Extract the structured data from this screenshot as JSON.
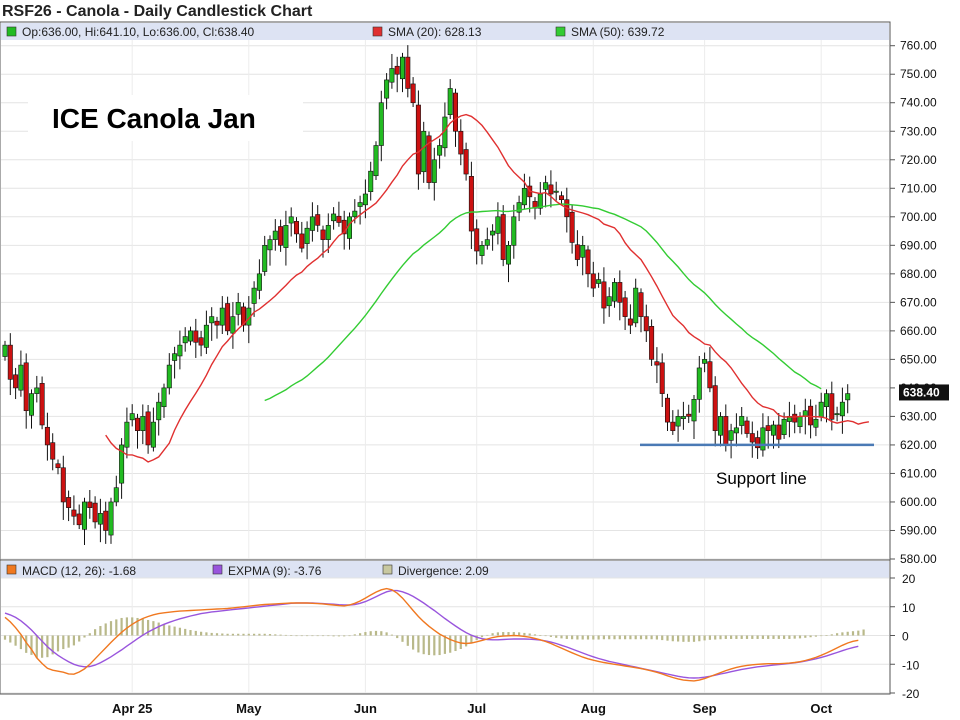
{
  "chart_data": {
    "type": "candlestick",
    "title": "RSF26 - Canola - Daily Candlestick Chart",
    "legend": {
      "ohlc": "Op:636.00, Hi:641.10, Lo:636.00, Cl:638.40",
      "sma20": "SMA (20): 628.13",
      "sma50": "SMA (50): 639.72",
      "macd": "MACD (12, 26): -1.68",
      "expma": "EXPMA (9): -3.76",
      "divergence": "Divergence: 2.09"
    },
    "colors": {
      "up": "#22bb22",
      "down": "#cc1111",
      "sma20": "#e03030",
      "sma50": "#33cc33",
      "macd": "#f07820",
      "expma": "#9955dd",
      "divergence": "#b9b98a",
      "support": "#4a7ab5",
      "legend_bg": "#dde3f3"
    },
    "annotations": {
      "headline": "ICE Canola Jan",
      "support_label": "Support line"
    },
    "support_level": 620,
    "last_price_label": "638.40",
    "y_range": [
      580,
      762
    ],
    "y_ticks": [
      "760.00",
      "750.00",
      "740.00",
      "730.00",
      "720.00",
      "710.00",
      "700.00",
      "690.00",
      "680.00",
      "670.00",
      "660.00",
      "650.00",
      "640.00",
      "630.00",
      "620.00",
      "610.00",
      "600.00",
      "590.00",
      "580.00"
    ],
    "macd_range": [
      -20,
      20
    ],
    "macd_ticks": [
      "20",
      "10",
      "0",
      "-10",
      "-20"
    ],
    "x_labels": [
      {
        "label": "Apr 25",
        "index": 24
      },
      {
        "label": "May",
        "index": 46
      },
      {
        "label": "Jun",
        "index": 68
      },
      {
        "label": "Jul",
        "index": 89
      },
      {
        "label": "Aug",
        "index": 111
      },
      {
        "label": "Sep",
        "index": 132
      },
      {
        "label": "Oct",
        "index": 154
      }
    ],
    "close": [
      655,
      643,
      640,
      648,
      632,
      638,
      640,
      627,
      620,
      615,
      612,
      600,
      598,
      595,
      592,
      600,
      598,
      593,
      596,
      590,
      600,
      605,
      620,
      628,
      631,
      625,
      630,
      620,
      628,
      635,
      640,
      648,
      652,
      655,
      658,
      660,
      656,
      655,
      662,
      665,
      662,
      668,
      660,
      665,
      670,
      662,
      668,
      675,
      680,
      690,
      692,
      695,
      690,
      697,
      700,
      694,
      689,
      696,
      700,
      697,
      692,
      697,
      701,
      698,
      694,
      700,
      702,
      705,
      708,
      716,
      725,
      740,
      748,
      752,
      750,
      756,
      745,
      740,
      715,
      730,
      712,
      720,
      725,
      735,
      745,
      730,
      722,
      715,
      695,
      688,
      690,
      692,
      695,
      700,
      685,
      690,
      700,
      705,
      710,
      707,
      703,
      708,
      712,
      708,
      709,
      706,
      700,
      691,
      685,
      690,
      680,
      675,
      678,
      668,
      672,
      677,
      670,
      665,
      662,
      675,
      665,
      660,
      650,
      648,
      638,
      628,
      625,
      630,
      630,
      630,
      636,
      647,
      650,
      640,
      625,
      630,
      620,
      625,
      626,
      630,
      624,
      621,
      619,
      626,
      625,
      627,
      622,
      629,
      630,
      628,
      630,
      632,
      627,
      629,
      635,
      638,
      629,
      631,
      635,
      638
    ],
    "sma20": [
      null,
      null,
      null,
      null,
      null,
      null,
      null,
      null,
      null,
      null,
      null,
      null,
      null,
      null,
      null,
      null,
      null,
      null,
      null,
      623.45,
      620.7,
      618.8,
      617.8,
      616.55,
      616.5,
      615.85,
      615.35,
      614.0,
      614.8,
      615.8,
      618.2,
      620.6,
      625.2,
      628.95,
      632.25,
      635.25,
      638.15,
      641.15,
      644.45,
      648.2,
      651.3,
      654.45,
      656.45,
      658.7,
      660.65,
      662.4,
      664.3,
      666.55,
      667.65,
      669.15,
      670.65,
      672.25,
      674.15,
      675.95,
      677.95,
      679.55,
      680.6,
      682.6,
      684.1,
      685.5,
      687.3,
      688.75,
      691.25,
      693.4,
      694.6,
      697.5,
      699.2,
      700.7,
      702.1,
      703.4,
      704.8,
      707.05,
      709.45,
      712.15,
      714.65,
      717.8,
      720.0,
      721.95,
      722.65,
      724.3,
      725.9,
      727.05,
      728.25,
      730.3,
      732.85,
      734.35,
      735.35,
      735.85,
      735.2,
      733.8,
      732.05,
      729.65,
      727.0,
      724.4,
      721.15,
      717.9,
      715.65,
      713.9,
      712.15,
      709.0,
      708.55,
      708.15,
      708.5,
      707.15,
      705.35,
      704.15,
      703.05,
      702.35,
      701.85,
      701.35,
      700.75,
      699.9,
      699.05,
      697.45,
      696.8,
      696.15,
      694.05,
      690.9,
      688.5,
      686.75,
      685.0,
      682.05,
      678.95,
      675.7,
      672.15,
      668.75,
      665.4,
      663.5,
      661.8,
      659.4,
      657.95,
      656.8,
      655.4,
      655.0,
      652.65,
      650.7,
      649.15,
      647.0,
      644.35,
      641.6,
      639.3,
      636.7,
      634.75,
      633.45,
      632.95,
      632.3,
      630.4,
      629.8,
      629.85,
      629.75,
      630.0,
      630.1,
      629.95,
      629.9,
      629.8,
      629.35,
      628.2,
      627.65,
      628.1,
      628.5,
      628.15,
      627.3,
      627.8,
      628.13
    ],
    "sma50": [
      null,
      null,
      null,
      null,
      null,
      null,
      null,
      null,
      null,
      null,
      null,
      null,
      null,
      null,
      null,
      null,
      null,
      null,
      null,
      null,
      null,
      null,
      null,
      null,
      null,
      null,
      null,
      null,
      null,
      null,
      null,
      null,
      null,
      null,
      null,
      null,
      null,
      null,
      null,
      null,
      null,
      null,
      null,
      null,
      null,
      null,
      null,
      null,
      null,
      635.58,
      636.32,
      637.36,
      638.36,
      639.34,
      640.7,
      641.82,
      642.8,
      644.18,
      645.78,
      647.42,
      649.02,
      650.8,
      652.82,
      654.88,
      656.92,
      658.92,
      660.92,
      663.16,
      665.4,
      667.92,
      670.42,
      673.12,
      675.68,
      678.16,
      680.56,
      682.88,
      685.02,
      687.04,
      688.38,
      690.08,
      691.48,
      692.92,
      694.38,
      696.12,
      698.1,
      699.5,
      700.58,
      701.38,
      701.68,
      701.64,
      701.86,
      701.96,
      702.12,
      702.18,
      701.88,
      701.88,
      702.1,
      702.3,
      702.68,
      702.98,
      703.2,
      703.46,
      703.72,
      704.08,
      704.26,
      704.48,
      704.38,
      704.2,
      704.02,
      703.84,
      703.48,
      703.08,
      702.84,
      702.14,
      701.44,
      700.86,
      700.02,
      699.24,
      698.32,
      697.44,
      696.5,
      695.02,
      693.06,
      690.98,
      688.64,
      686.28,
      684.38,
      682.42,
      680.18,
      678.04,
      676.22,
      674.82,
      673.3,
      671.4,
      669.28,
      667.38,
      665.7,
      664.1,
      662.42,
      660.88,
      659.08,
      657.64,
      656.46,
      655.12,
      653.58,
      652.08,
      650.32,
      648.78,
      647.16,
      645.56,
      644.48,
      643.16,
      641.62,
      640.72,
      639.72
    ],
    "macd": [
      6.32,
      4.72,
      2.73,
      0.37,
      -2.45,
      -4.84,
      -7.79,
      -9.73,
      -11.4,
      -12.07,
      -12.41,
      -12.78,
      -13.34,
      -13.45,
      -12.7,
      -11.6,
      -10.0,
      -8.1,
      -6.2,
      -4.3,
      -2.4,
      -0.6,
      1.1,
      2.6,
      3.9,
      5.0,
      5.9,
      6.6,
      7.2,
      7.6,
      7.9,
      8.1,
      8.3,
      8.5,
      8.6,
      8.7,
      8.8,
      8.9,
      9.0,
      9.1,
      9.2,
      9.3,
      9.4,
      9.6,
      9.8,
      10.0,
      10.2,
      10.4,
      10.6,
      10.8,
      10.9,
      11.0,
      11.1,
      11.2,
      11.3,
      11.3,
      11.3,
      11.3,
      11.2,
      11.1,
      11.0,
      10.8,
      10.6,
      10.4,
      10.3,
      10.6,
      11.2,
      12.0,
      13.0,
      14.1,
      15.1,
      15.9,
      16.3,
      15.9,
      14.7,
      13.0,
      10.9,
      8.7,
      6.6,
      4.8,
      3.2,
      1.8,
      0.5,
      -0.5,
      -1.4,
      -2.1,
      -2.6,
      -2.8,
      -2.6,
      -2.2,
      -1.7,
      -1.2,
      -0.7,
      -0.4,
      -0.2,
      -0.1,
      0.0,
      -0.1,
      -0.3,
      -0.6,
      -1.0,
      -1.5,
      -2.1,
      -2.8,
      -3.6,
      -4.4,
      -5.2,
      -6.0,
      -6.8,
      -7.5,
      -8.1,
      -8.6,
      -9.0,
      -9.4,
      -9.7,
      -10.0,
      -10.3,
      -10.6,
      -10.9,
      -11.2,
      -11.5,
      -11.9,
      -12.3,
      -12.8,
      -13.4,
      -14.0,
      -14.6,
      -15.1,
      -15.5,
      -15.7,
      -15.8,
      -15.5,
      -15.0,
      -14.3,
      -13.6,
      -12.9,
      -12.2,
      -11.6,
      -11.1,
      -10.7,
      -10.4,
      -10.2,
      -10.0,
      -9.9,
      -9.8,
      -9.8,
      -9.8,
      -9.7,
      -9.6,
      -9.4,
      -9.1,
      -8.7,
      -8.2,
      -7.6,
      -6.9,
      -6.1,
      -5.2,
      -4.3,
      -3.4,
      -2.6,
      -2.0,
      -1.68
    ],
    "expma": [
      7.78,
      7.17,
      6.28,
      5.1,
      3.59,
      1.9,
      -0.04,
      -1.98,
      -3.86,
      -5.5,
      -6.88,
      -8.06,
      -9.12,
      -10.0,
      -10.6,
      -10.9,
      -10.8,
      -10.3,
      -9.5,
      -8.5,
      -7.4,
      -6.2,
      -5.0,
      -3.7,
      -2.4,
      -1.1,
      0.1,
      1.2,
      2.2,
      3.1,
      3.9,
      4.6,
      5.2,
      5.8,
      6.3,
      6.8,
      7.2,
      7.6,
      7.9,
      8.2,
      8.4,
      8.6,
      8.8,
      9.0,
      9.2,
      9.4,
      9.6,
      9.8,
      10.0,
      10.2,
      10.4,
      10.6,
      10.8,
      11.0,
      11.2,
      11.3,
      11.3,
      11.3,
      11.3,
      11.2,
      11.1,
      11.0,
      10.9,
      10.7,
      10.6,
      10.6,
      10.8,
      11.2,
      11.8,
      12.6,
      13.5,
      14.4,
      15.2,
      15.6,
      15.6,
      15.2,
      14.5,
      13.6,
      12.5,
      11.3,
      10.0,
      8.7,
      7.3,
      5.9,
      4.6,
      3.3,
      2.1,
      1.0,
      0.1,
      -0.6,
      -1.1,
      -1.4,
      -1.5,
      -1.5,
      -1.4,
      -1.3,
      -1.2,
      -1.2,
      -1.2,
      -1.3,
      -1.4,
      -1.6,
      -1.9,
      -2.3,
      -2.8,
      -3.4,
      -4.0,
      -4.7,
      -5.4,
      -6.1,
      -6.8,
      -7.4,
      -8.0,
      -8.5,
      -9.0,
      -9.4,
      -9.8,
      -10.2,
      -10.6,
      -11.0,
      -11.4,
      -11.8,
      -12.2,
      -12.6,
      -13.0,
      -13.4,
      -13.8,
      -14.2,
      -14.5,
      -14.7,
      -14.8,
      -14.7,
      -14.5,
      -14.2,
      -13.8,
      -13.4,
      -13.0,
      -12.6,
      -12.2,
      -11.8,
      -11.5,
      -11.2,
      -10.9,
      -10.7,
      -10.5,
      -10.3,
      -10.1,
      -9.9,
      -9.7,
      -9.5,
      -9.2,
      -8.9,
      -8.5,
      -8.1,
      -7.6,
      -7.1,
      -6.5,
      -5.9,
      -5.3,
      -4.7,
      -4.2,
      -3.76
    ],
    "divergence": [
      -1.46,
      -2.45,
      -3.55,
      -4.73,
      -6.04,
      -6.74,
      -7.75,
      -7.75,
      -7.54,
      -6.57,
      -5.53,
      -4.72,
      -4.22,
      -3.45,
      -2.1,
      -0.7,
      0.8,
      2.2,
      3.3,
      4.2,
      5.0,
      5.6,
      6.1,
      6.3,
      6.3,
      6.1,
      5.8,
      5.4,
      5.0,
      4.5,
      4.0,
      3.5,
      3.1,
      2.7,
      2.3,
      1.9,
      1.6,
      1.3,
      1.1,
      0.9,
      0.8,
      0.7,
      0.6,
      0.6,
      0.6,
      0.6,
      0.6,
      0.6,
      0.6,
      0.6,
      0.5,
      0.4,
      0.3,
      0.2,
      0.1,
      0.0,
      0.0,
      0.0,
      -0.1,
      -0.1,
      -0.1,
      -0.2,
      -0.3,
      -0.3,
      -0.3,
      0.0,
      0.4,
      0.8,
      1.2,
      1.5,
      1.6,
      1.5,
      1.1,
      0.3,
      -0.9,
      -2.2,
      -3.6,
      -4.9,
      -5.9,
      -6.5,
      -6.8,
      -6.9,
      -6.8,
      -6.4,
      -6.0,
      -5.4,
      -4.7,
      -3.8,
      -2.7,
      -1.6,
      -0.6,
      0.2,
      0.8,
      1.1,
      1.2,
      1.2,
      1.2,
      1.1,
      0.9,
      0.7,
      0.4,
      0.1,
      -0.2,
      -0.5,
      -0.8,
      -1.0,
      -1.2,
      -1.3,
      -1.4,
      -1.4,
      -1.4,
      -1.4,
      -1.4,
      -1.3,
      -1.3,
      -1.3,
      -1.3,
      -1.3,
      -1.3,
      -1.3,
      -1.3,
      -1.3,
      -1.3,
      -1.4,
      -1.6,
      -1.8,
      -2.0,
      -2.1,
      -2.2,
      -2.2,
      -2.2,
      -2.0,
      -1.7,
      -1.5,
      -1.4,
      -1.3,
      -1.2,
      -1.2,
      -1.2,
      -1.2,
      -1.2,
      -1.2,
      -1.2,
      -1.2,
      -1.2,
      -1.2,
      -1.2,
      -1.2,
      -1.2,
      -1.1,
      -1.0,
      -0.8,
      -0.6,
      -0.4,
      -0.2,
      0.1,
      0.4,
      0.8,
      1.1,
      1.3,
      1.5,
      1.7,
      2.09
    ]
  }
}
